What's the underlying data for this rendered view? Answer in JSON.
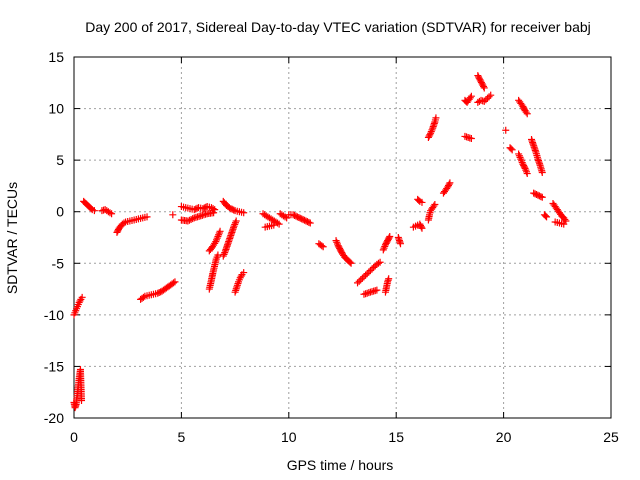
{
  "chart_data": {
    "type": "scatter",
    "title": "Day 200 of 2017, Sidereal Day-to-day VTEC variation (SDTVAR) for receiver babj",
    "xlabel": "GPS time / hours",
    "ylabel": "SDTVAR / TECUs",
    "xlim": [
      0,
      25
    ],
    "ylim": [
      -20,
      15
    ],
    "xticks": [
      "0",
      "5",
      "10",
      "15",
      "20",
      "25"
    ],
    "yticks": [
      "-20",
      "-15",
      "-10",
      "-5",
      "0",
      "5",
      "10",
      "15"
    ],
    "grid": true,
    "marker": "plus",
    "color": "#ff0000",
    "segments": [
      [
        [
          0.0,
          -18.5
        ],
        [
          0.05,
          -19.0
        ],
        [
          0.1,
          -18.7
        ],
        [
          0.15,
          -17.8
        ],
        [
          0.2,
          -16.9
        ],
        [
          0.25,
          -16.0
        ],
        [
          0.3,
          -15.3
        ],
        [
          0.35,
          -18.3
        ]
      ],
      [
        [
          0.0,
          -10.0
        ],
        [
          0.08,
          -9.6
        ],
        [
          0.16,
          -9.2
        ],
        [
          0.24,
          -8.8
        ],
        [
          0.32,
          -8.5
        ],
        [
          0.38,
          -8.3
        ]
      ],
      [
        [
          0.45,
          1.0
        ],
        [
          0.55,
          0.8
        ],
        [
          0.65,
          0.6
        ],
        [
          0.75,
          0.4
        ],
        [
          0.85,
          0.2
        ],
        [
          0.95,
          0.1
        ]
      ],
      [
        [
          1.3,
          0.1
        ],
        [
          1.45,
          0.2
        ],
        [
          1.6,
          0.0
        ],
        [
          1.75,
          -0.2
        ]
      ],
      [
        [
          2.0,
          -2.0
        ],
        [
          2.1,
          -1.6
        ],
        [
          2.25,
          -1.2
        ],
        [
          2.4,
          -1.0
        ],
        [
          2.6,
          -0.9
        ],
        [
          2.8,
          -0.8
        ],
        [
          3.0,
          -0.7
        ],
        [
          3.2,
          -0.6
        ],
        [
          3.4,
          -0.5
        ]
      ],
      [
        [
          3.1,
          -8.5
        ],
        [
          3.3,
          -8.2
        ],
        [
          3.5,
          -8.1
        ],
        [
          3.7,
          -8.0
        ],
        [
          3.9,
          -7.9
        ],
        [
          4.1,
          -7.7
        ],
        [
          4.3,
          -7.4
        ],
        [
          4.5,
          -7.1
        ],
        [
          4.7,
          -6.8
        ]
      ],
      [
        [
          4.6,
          -0.3
        ]
      ],
      [
        [
          5.0,
          0.5
        ],
        [
          5.2,
          0.4
        ],
        [
          5.4,
          0.3
        ],
        [
          5.6,
          0.2
        ],
        [
          5.8,
          0.4
        ],
        [
          6.0,
          0.3
        ],
        [
          6.2,
          0.5
        ],
        [
          6.4,
          0.4
        ],
        [
          6.55,
          0.2
        ]
      ],
      [
        [
          5.0,
          -0.8
        ],
        [
          5.3,
          -0.9
        ],
        [
          5.6,
          -0.6
        ],
        [
          5.9,
          -0.4
        ],
        [
          6.2,
          -0.2
        ],
        [
          6.5,
          -0.1
        ]
      ],
      [
        [
          6.3,
          -3.8
        ],
        [
          6.45,
          -3.4
        ],
        [
          6.6,
          -2.9
        ],
        [
          6.7,
          -2.4
        ],
        [
          6.8,
          -1.9
        ]
      ],
      [
        [
          6.3,
          -7.5
        ],
        [
          6.38,
          -6.8
        ],
        [
          6.46,
          -6.0
        ],
        [
          6.54,
          -5.3
        ],
        [
          6.62,
          -4.6
        ],
        [
          6.7,
          -4.2
        ]
      ],
      [
        [
          6.95,
          -4.3
        ],
        [
          7.05,
          -3.8
        ],
        [
          7.15,
          -3.2
        ],
        [
          7.25,
          -2.6
        ],
        [
          7.35,
          -2.0
        ],
        [
          7.45,
          -1.4
        ],
        [
          7.55,
          -0.9
        ]
      ],
      [
        [
          6.95,
          1.0
        ],
        [
          7.1,
          0.6
        ],
        [
          7.3,
          0.3
        ],
        [
          7.5,
          0.1
        ],
        [
          7.7,
          0.0
        ],
        [
          7.9,
          -0.1
        ]
      ],
      [
        [
          7.5,
          -7.8
        ],
        [
          7.58,
          -7.3
        ],
        [
          7.66,
          -6.8
        ],
        [
          7.74,
          -6.4
        ],
        [
          7.82,
          -6.1
        ],
        [
          7.9,
          -5.9
        ]
      ],
      [
        [
          8.8,
          -0.2
        ],
        [
          8.95,
          -0.4
        ],
        [
          9.1,
          -0.6
        ],
        [
          9.25,
          -0.8
        ],
        [
          9.4,
          -1.0
        ],
        [
          9.55,
          -1.2
        ]
      ],
      [
        [
          8.9,
          -1.5
        ],
        [
          9.1,
          -1.4
        ],
        [
          9.3,
          -1.3
        ]
      ],
      [
        [
          9.6,
          -0.2
        ],
        [
          9.75,
          -0.4
        ],
        [
          9.9,
          -0.6
        ]
      ],
      [
        [
          10.0,
          -0.3
        ],
        [
          10.2,
          -0.3
        ],
        [
          10.4,
          -0.5
        ],
        [
          10.6,
          -0.7
        ],
        [
          10.8,
          -0.9
        ],
        [
          11.0,
          -1.1
        ]
      ],
      [
        [
          11.4,
          -3.1
        ],
        [
          11.6,
          -3.4
        ]
      ],
      [
        [
          12.2,
          -2.8
        ],
        [
          12.3,
          -3.3
        ],
        [
          12.4,
          -3.7
        ],
        [
          12.5,
          -4.1
        ],
        [
          12.6,
          -4.4
        ],
        [
          12.7,
          -4.6
        ],
        [
          12.8,
          -4.8
        ],
        [
          12.9,
          -5.0
        ]
      ],
      [
        [
          13.2,
          -6.9
        ],
        [
          13.35,
          -6.6
        ],
        [
          13.5,
          -6.3
        ],
        [
          13.65,
          -6.0
        ],
        [
          13.8,
          -5.7
        ],
        [
          13.95,
          -5.4
        ],
        [
          14.1,
          -5.1
        ],
        [
          14.25,
          -4.9
        ]
      ],
      [
        [
          13.5,
          -8.0
        ],
        [
          13.65,
          -7.9
        ],
        [
          13.8,
          -7.8
        ],
        [
          13.95,
          -7.7
        ],
        [
          14.1,
          -7.6
        ]
      ],
      [
        [
          14.5,
          -7.8
        ],
        [
          14.55,
          -7.3
        ],
        [
          14.6,
          -6.8
        ],
        [
          14.65,
          -6.5
        ]
      ],
      [
        [
          14.4,
          -3.7
        ],
        [
          14.5,
          -3.2
        ],
        [
          14.6,
          -2.8
        ],
        [
          14.7,
          -2.4
        ]
      ],
      [
        [
          15.1,
          -2.5
        ],
        [
          15.2,
          -3.1
        ]
      ],
      [
        [
          15.8,
          -1.5
        ],
        [
          15.9,
          -1.4
        ],
        [
          16.0,
          -1.3
        ],
        [
          16.1,
          -1.2
        ],
        [
          16.2,
          -1.6
        ]
      ],
      [
        [
          16.0,
          1.2
        ],
        [
          16.1,
          1.0
        ],
        [
          16.2,
          0.9
        ]
      ],
      [
        [
          16.5,
          -0.8
        ],
        [
          16.55,
          -0.3
        ],
        [
          16.6,
          0.1
        ],
        [
          16.7,
          0.4
        ],
        [
          16.8,
          0.7
        ]
      ],
      [
        [
          16.5,
          7.2
        ],
        [
          16.6,
          7.6
        ],
        [
          16.7,
          8.1
        ],
        [
          16.8,
          8.7
        ],
        [
          16.85,
          9.1
        ]
      ],
      [
        [
          17.2,
          1.8
        ],
        [
          17.3,
          2.1
        ],
        [
          17.4,
          2.4
        ],
        [
          17.5,
          2.8
        ]
      ],
      [
        [
          18.2,
          7.3
        ],
        [
          18.35,
          7.2
        ],
        [
          18.5,
          7.1
        ]
      ],
      [
        [
          18.2,
          10.8
        ],
        [
          18.3,
          10.6
        ],
        [
          18.4,
          10.9
        ],
        [
          18.5,
          11.2
        ]
      ],
      [
        [
          18.8,
          13.2
        ],
        [
          18.9,
          12.8
        ],
        [
          19.0,
          12.4
        ],
        [
          19.1,
          12.0
        ]
      ],
      [
        [
          18.8,
          10.6
        ],
        [
          18.95,
          10.8
        ],
        [
          19.1,
          10.7
        ],
        [
          19.25,
          11.0
        ],
        [
          19.4,
          11.3
        ]
      ],
      [
        [
          20.1,
          7.9
        ]
      ],
      [
        [
          20.3,
          6.2
        ],
        [
          20.4,
          6.0
        ]
      ],
      [
        [
          20.7,
          5.6
        ],
        [
          20.8,
          5.1
        ],
        [
          20.9,
          4.6
        ],
        [
          21.0,
          4.2
        ],
        [
          21.1,
          3.7
        ]
      ],
      [
        [
          20.7,
          10.8
        ],
        [
          20.8,
          10.5
        ],
        [
          20.9,
          10.2
        ],
        [
          21.0,
          9.8
        ],
        [
          21.1,
          9.5
        ]
      ],
      [
        [
          21.3,
          7.0
        ],
        [
          21.4,
          6.4
        ],
        [
          21.5,
          5.8
        ],
        [
          21.6,
          5.1
        ],
        [
          21.7,
          4.5
        ],
        [
          21.8,
          3.8
        ]
      ],
      [
        [
          21.4,
          1.8
        ],
        [
          21.6,
          1.6
        ],
        [
          21.8,
          1.4
        ]
      ],
      [
        [
          21.9,
          -0.3
        ],
        [
          22.0,
          -0.5
        ]
      ],
      [
        [
          22.3,
          0.8
        ],
        [
          22.4,
          0.5
        ],
        [
          22.5,
          0.2
        ],
        [
          22.6,
          -0.1
        ],
        [
          22.7,
          -0.4
        ],
        [
          22.8,
          -0.6
        ],
        [
          22.9,
          -0.9
        ]
      ],
      [
        [
          22.4,
          -1.0
        ],
        [
          22.6,
          -1.1
        ],
        [
          22.8,
          -1.2
        ]
      ]
    ]
  }
}
